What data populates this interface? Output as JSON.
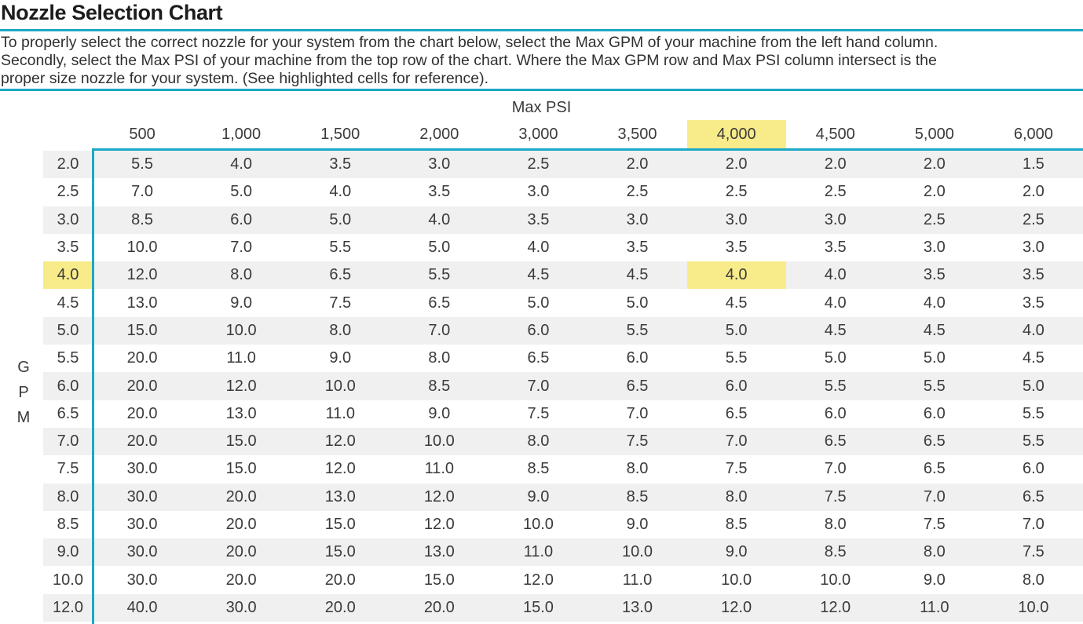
{
  "page": {
    "title": "Nozzle Selection Chart",
    "instructions_lines": [
      "To properly select the correct nozzle for your system from the chart below, select the Max GPM of your machine from the left hand column.",
      "Secondly, select the Max PSI of your machine from the top row of the chart. Where the Max GPM row and Max PSI column intersect is the",
      "proper size nozzle for your system. (See highlighted cells for reference)."
    ]
  },
  "chart_data": {
    "type": "table",
    "title": "Nozzle Selection Chart",
    "col_axis_label": "Max PSI",
    "row_axis_label": "GPM",
    "row_axis_letters": [
      "G",
      "P",
      "M"
    ],
    "columns_max_psi": [
      "500",
      "1,000",
      "1,500",
      "2,000",
      "3,000",
      "3,500",
      "4,000",
      "4,500",
      "5,000",
      "6,000"
    ],
    "rows_max_gpm": [
      "2.0",
      "2.5",
      "3.0",
      "3.5",
      "4.0",
      "4.5",
      "5.0",
      "5.5",
      "6.0",
      "6.5",
      "7.0",
      "7.5",
      "8.0",
      "8.5",
      "9.0",
      "10.0",
      "12.0"
    ],
    "nozzle_sizes": [
      [
        "5.5",
        "4.0",
        "3.5",
        "3.0",
        "2.5",
        "2.0",
        "2.0",
        "2.0",
        "2.0",
        "1.5"
      ],
      [
        "7.0",
        "5.0",
        "4.0",
        "3.5",
        "3.0",
        "2.5",
        "2.5",
        "2.5",
        "2.0",
        "2.0"
      ],
      [
        "8.5",
        "6.0",
        "5.0",
        "4.0",
        "3.5",
        "3.0",
        "3.0",
        "3.0",
        "2.5",
        "2.5"
      ],
      [
        "10.0",
        "7.0",
        "5.5",
        "5.0",
        "4.0",
        "3.5",
        "3.5",
        "3.5",
        "3.0",
        "3.0"
      ],
      [
        "12.0",
        "8.0",
        "6.5",
        "5.5",
        "4.5",
        "4.5",
        "4.0",
        "4.0",
        "3.5",
        "3.5"
      ],
      [
        "13.0",
        "9.0",
        "7.5",
        "6.5",
        "5.0",
        "5.0",
        "4.5",
        "4.0",
        "4.0",
        "3.5"
      ],
      [
        "15.0",
        "10.0",
        "8.0",
        "7.0",
        "6.0",
        "5.5",
        "5.0",
        "4.5",
        "4.5",
        "4.0"
      ],
      [
        "20.0",
        "11.0",
        "9.0",
        "8.0",
        "6.5",
        "6.0",
        "5.5",
        "5.0",
        "5.0",
        "4.5"
      ],
      [
        "20.0",
        "12.0",
        "10.0",
        "8.5",
        "7.0",
        "6.5",
        "6.0",
        "5.5",
        "5.5",
        "5.0"
      ],
      [
        "20.0",
        "13.0",
        "11.0",
        "9.0",
        "7.5",
        "7.0",
        "6.5",
        "6.0",
        "6.0",
        "5.5"
      ],
      [
        "20.0",
        "15.0",
        "12.0",
        "10.0",
        "8.0",
        "7.5",
        "7.0",
        "6.5",
        "6.5",
        "5.5"
      ],
      [
        "30.0",
        "15.0",
        "12.0",
        "11.0",
        "8.5",
        "8.0",
        "7.5",
        "7.0",
        "6.5",
        "6.0"
      ],
      [
        "30.0",
        "20.0",
        "13.0",
        "12.0",
        "9.0",
        "8.5",
        "8.0",
        "7.5",
        "7.0",
        "6.5"
      ],
      [
        "30.0",
        "20.0",
        "15.0",
        "12.0",
        "10.0",
        "9.0",
        "8.5",
        "8.0",
        "7.5",
        "7.0"
      ],
      [
        "30.0",
        "20.0",
        "15.0",
        "13.0",
        "11.0",
        "10.0",
        "9.0",
        "8.5",
        "8.0",
        "7.5"
      ],
      [
        "30.0",
        "20.0",
        "20.0",
        "15.0",
        "12.0",
        "11.0",
        "10.0",
        "10.0",
        "9.0",
        "8.0"
      ],
      [
        "40.0",
        "30.0",
        "20.0",
        "20.0",
        "15.0",
        "13.0",
        "12.0",
        "12.0",
        "11.0",
        "10.0"
      ]
    ],
    "highlight": {
      "psi": "4,000",
      "gpm": "4.0",
      "nozzle": "4.0",
      "col_index": 6,
      "row_index": 4
    },
    "layout_hints": {
      "row_stripes": true,
      "grid": "none",
      "accent_borders": "top-left of data area"
    }
  },
  "colors": {
    "accent": "#1CA8C5",
    "highlight": "#F8EB8A",
    "stripe": "#F0F0F0",
    "text": "#3A3A3A",
    "title": "#1C1C1E"
  }
}
